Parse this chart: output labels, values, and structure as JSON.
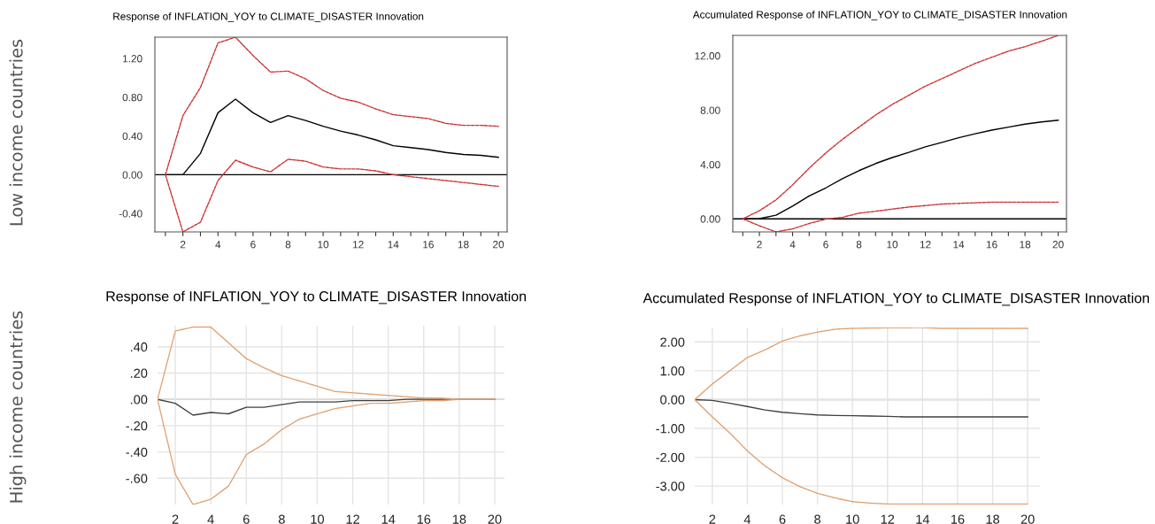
{
  "chart_data": [
    {
      "type": "line",
      "title": "Response of INFLATION_YOY to CLIMATE_DISASTER Innovation",
      "annotations": [
        "Low income countries"
      ],
      "x": [
        1,
        2,
        3,
        4,
        5,
        6,
        7,
        8,
        9,
        10,
        11,
        12,
        13,
        14,
        15,
        16,
        17,
        18,
        19,
        20
      ],
      "series": [
        {
          "color": "#000000",
          "line_style": "solid",
          "values": [
            0,
            0,
            0.22,
            0.64,
            0.78,
            0.64,
            0.54,
            0.61,
            0.56,
            0.5,
            0.45,
            0.41,
            0.36,
            0.3,
            0.28,
            0.26,
            0.23,
            0.21,
            0.2,
            0.18
          ]
        },
        {
          "color": "#cc3333",
          "line_style": "dashed",
          "values": [
            0,
            0.61,
            0.9,
            1.36,
            1.42,
            1.23,
            1.06,
            1.07,
            0.99,
            0.87,
            0.79,
            0.75,
            0.68,
            0.62,
            0.6,
            0.58,
            0.53,
            0.51,
            0.51,
            0.5
          ]
        },
        {
          "color": "#cc3333",
          "line_style": "dashed",
          "values": [
            0,
            -0.59,
            -0.49,
            -0.06,
            0.15,
            0.08,
            0.03,
            0.16,
            0.14,
            0.08,
            0.06,
            0.06,
            0.04,
            0.0,
            -0.02,
            -0.04,
            -0.06,
            -0.08,
            -0.1,
            -0.12
          ]
        }
      ],
      "xlim": [
        0.4,
        20.5
      ],
      "ylim": [
        -0.59,
        1.42
      ],
      "xticks": [
        {
          "value": 1,
          "label": null
        },
        2,
        {
          "value": 3,
          "label": null
        },
        4,
        {
          "value": 5,
          "label": null
        },
        6,
        {
          "value": 7,
          "label": null
        },
        8,
        {
          "value": 9,
          "label": null
        },
        10,
        {
          "value": 11,
          "label": null
        },
        12,
        {
          "value": 13,
          "label": null
        },
        14,
        {
          "value": 15,
          "label": null
        },
        16,
        {
          "value": 17,
          "label": null
        },
        18,
        {
          "value": 19,
          "label": null
        },
        20
      ],
      "yticks": [
        {
          "value": -0.4,
          "label": "-0.40"
        },
        {
          "value": 0,
          "label": "0.00"
        },
        {
          "value": 0.4,
          "label": "0.40"
        },
        {
          "value": 0.8,
          "label": "0.80"
        },
        {
          "value": 1.2,
          "label": "1.20"
        }
      ],
      "ref_lines": [
        {
          "axis": "y",
          "value": 0,
          "color": "#000000"
        }
      ],
      "grid": false,
      "legend": false,
      "marker": "none"
    },
    {
      "type": "line",
      "title": "Accumulated Response of INFLATION_YOY to CLIMATE_DISASTER Innovation",
      "x": [
        1,
        2,
        3,
        4,
        5,
        6,
        7,
        8,
        9,
        10,
        11,
        12,
        13,
        14,
        15,
        16,
        17,
        18,
        19,
        20
      ],
      "series": [
        {
          "color": "#000000",
          "line_style": "solid",
          "values": [
            0,
            0.02,
            0.27,
            0.94,
            1.68,
            2.28,
            2.95,
            3.55,
            4.07,
            4.51,
            4.89,
            5.3,
            5.63,
            5.97,
            6.26,
            6.53,
            6.75,
            6.97,
            7.13,
            7.26
          ]
        },
        {
          "color": "#cc3333",
          "line_style": "dashed",
          "values": [
            0,
            0.6,
            1.39,
            2.5,
            3.73,
            4.85,
            5.85,
            6.75,
            7.64,
            8.42,
            9.09,
            9.77,
            10.32,
            10.88,
            11.44,
            11.89,
            12.34,
            12.67,
            13.07,
            13.5
          ]
        },
        {
          "color": "#cc3333",
          "line_style": "dashed",
          "values": [
            0,
            -0.51,
            -0.96,
            -0.74,
            -0.34,
            -0.02,
            0.11,
            0.42,
            0.56,
            0.72,
            0.87,
            0.98,
            1.09,
            1.14,
            1.18,
            1.23,
            1.23,
            1.23,
            1.23,
            1.23
          ]
        }
      ],
      "xlim": [
        0.4,
        20.5
      ],
      "ylim": [
        -0.96,
        13.5
      ],
      "xticks": [
        {
          "value": 1,
          "label": null
        },
        2,
        {
          "value": 3,
          "label": null
        },
        4,
        {
          "value": 5,
          "label": null
        },
        6,
        {
          "value": 7,
          "label": null
        },
        8,
        {
          "value": 9,
          "label": null
        },
        10,
        {
          "value": 11,
          "label": null
        },
        12,
        {
          "value": 13,
          "label": null
        },
        14,
        {
          "value": 15,
          "label": null
        },
        16,
        {
          "value": 17,
          "label": null
        },
        18,
        {
          "value": 19,
          "label": null
        },
        20
      ],
      "yticks": [
        {
          "value": 0,
          "label": "0.00"
        },
        {
          "value": 4,
          "label": "4.00"
        },
        {
          "value": 8,
          "label": "8.00"
        },
        {
          "value": 12,
          "label": "12.00"
        }
      ],
      "ref_lines": [
        {
          "axis": "y",
          "value": 0,
          "color": "#000000"
        }
      ],
      "grid": false,
      "legend": false,
      "marker": "none"
    },
    {
      "type": "line",
      "title": "Response of INFLATION_YOY to CLIMATE_DISASTER Innovation",
      "annotations": [
        "High income countries"
      ],
      "x": [
        1,
        2,
        3,
        4,
        5,
        6,
        7,
        8,
        9,
        10,
        11,
        12,
        13,
        14,
        15,
        16,
        17,
        18,
        19,
        20
      ],
      "series": [
        {
          "color": "#404040",
          "line_style": "solid",
          "values": [
            0,
            -0.03,
            -0.12,
            -0.1,
            -0.11,
            -0.06,
            -0.06,
            -0.04,
            -0.02,
            -0.02,
            -0.02,
            -0.01,
            -0.01,
            -0.01,
            0,
            0,
            0,
            0,
            0,
            0
          ]
        },
        {
          "color": "#e0a070",
          "line_style": "dotted",
          "values": [
            0,
            0.52,
            0.55,
            0.55,
            0.43,
            0.31,
            0.24,
            0.18,
            0.14,
            0.1,
            0.06,
            0.05,
            0.04,
            0.03,
            0.02,
            0.01,
            0.01,
            0,
            0,
            0
          ]
        },
        {
          "color": "#e0a070",
          "line_style": "dotted",
          "values": [
            0,
            -0.57,
            -0.8,
            -0.76,
            -0.66,
            -0.42,
            -0.34,
            -0.23,
            -0.15,
            -0.11,
            -0.07,
            -0.05,
            -0.03,
            -0.03,
            -0.02,
            -0.01,
            -0.01,
            0,
            0,
            0
          ]
        }
      ],
      "xlim": [
        1,
        20.55
      ],
      "ylim": [
        -0.8,
        0.56
      ],
      "xticks": [
        2,
        4,
        6,
        8,
        10,
        12,
        14,
        16,
        18,
        20
      ],
      "yticks": [
        {
          "value": -0.6,
          "label": "-.60"
        },
        {
          "value": -0.4,
          "label": "-.40"
        },
        {
          "value": -0.2,
          "label": "-.20"
        },
        {
          "value": 0,
          "label": ".00"
        },
        {
          "value": 0.2,
          "label": ".20"
        },
        {
          "value": 0.4,
          "label": ".40"
        }
      ],
      "ref_lines": [
        {
          "axis": "y",
          "value": 0,
          "color": "#b0b0b0"
        }
      ],
      "grid": true,
      "legend": false,
      "marker": "none"
    },
    {
      "type": "line",
      "title": "Accumulated Response of INFLATION_YOY to CLIMATE_DISASTER Innovation",
      "x": [
        1,
        2,
        3,
        4,
        5,
        6,
        7,
        8,
        9,
        10,
        11,
        12,
        13,
        14,
        15,
        16,
        17,
        18,
        19,
        20
      ],
      "series": [
        {
          "color": "#404040",
          "line_style": "solid",
          "values": [
            0,
            -0.03,
            -0.13,
            -0.24,
            -0.36,
            -0.44,
            -0.49,
            -0.53,
            -0.55,
            -0.56,
            -0.57,
            -0.58,
            -0.6,
            -0.6,
            -0.6,
            -0.6,
            -0.6,
            -0.6,
            -0.6,
            -0.6
          ]
        },
        {
          "color": "#e0a070",
          "line_style": "dotted",
          "values": [
            0,
            0.54,
            1.0,
            1.46,
            1.72,
            2.03,
            2.21,
            2.34,
            2.44,
            2.47,
            2.48,
            2.49,
            2.49,
            2.5,
            2.47,
            2.47,
            2.47,
            2.47,
            2.47,
            2.47
          ]
        },
        {
          "color": "#e0a070",
          "line_style": "dotted",
          "values": [
            0,
            -0.6,
            -1.16,
            -1.78,
            -2.3,
            -2.71,
            -3.02,
            -3.25,
            -3.41,
            -3.54,
            -3.59,
            -3.62,
            -3.62,
            -3.62,
            -3.62,
            -3.62,
            -3.62,
            -3.62,
            -3.62,
            -3.62
          ]
        }
      ],
      "xlim": [
        1,
        20.7
      ],
      "ylim": [
        -3.64,
        2.5
      ],
      "xticks": [
        2,
        4,
        6,
        8,
        10,
        12,
        14,
        16,
        18,
        20
      ],
      "yticks": [
        {
          "value": -3,
          "label": "-3.00"
        },
        {
          "value": -2,
          "label": "-2.00"
        },
        {
          "value": -1,
          "label": "-1.00"
        },
        {
          "value": 0,
          "label": "0.00"
        },
        {
          "value": 1,
          "label": "1.00"
        },
        {
          "value": 2,
          "label": "2.00"
        }
      ],
      "ref_lines": [
        {
          "axis": "y",
          "value": 0,
          "color": "#b0b0b0"
        }
      ],
      "grid": true,
      "legend": false,
      "marker": "none"
    }
  ]
}
